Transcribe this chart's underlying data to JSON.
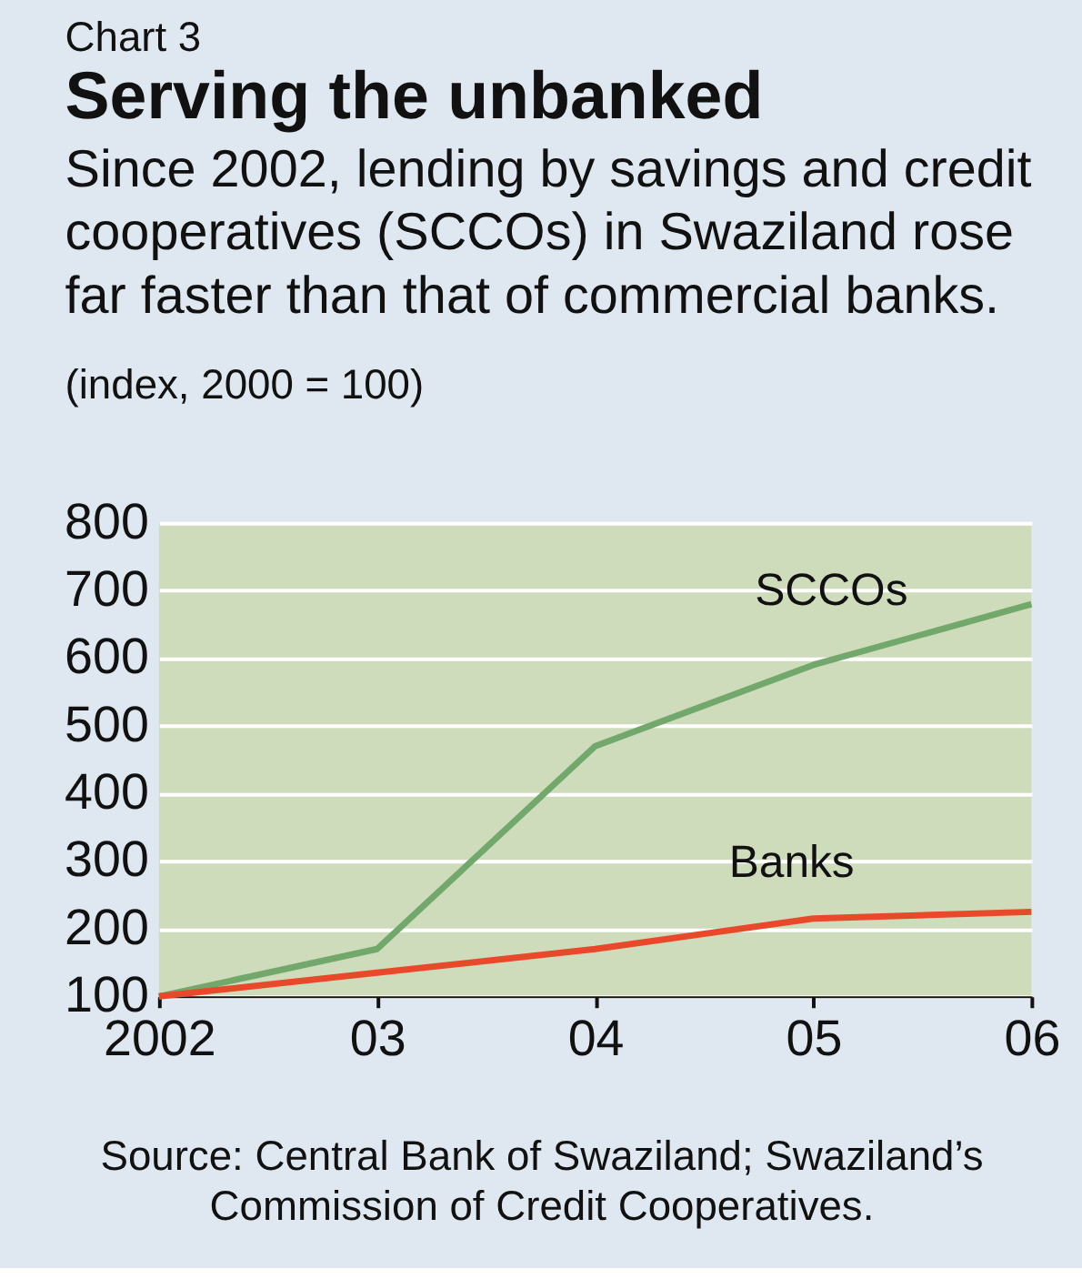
{
  "chart_data": {
    "type": "line",
    "title": "Serving the unbanked",
    "subtitle": "Since 2002, lending by savings and credit cooperatives (SCCOs) in Swaziland rose far faster than that of commercial banks.",
    "ylabel": "(index, 2000 = 100)",
    "annotations": [
      "Chart 3",
      "Source: Central Bank of Swaziland; Swaziland’s Commission of Credit Cooperatives."
    ],
    "x": [
      2002,
      2003,
      2004,
      2005,
      2006
    ],
    "series": [
      {
        "name": "SCCOs",
        "color": "#72a86c",
        "values": [
          100,
          170,
          470,
          590,
          680
        ]
      },
      {
        "name": "Banks",
        "color": "#e8492b",
        "values": [
          100,
          135,
          170,
          215,
          225
        ]
      }
    ],
    "xlim": [
      2002,
      2006
    ],
    "xticks": [
      2002,
      {
        "value": 2003,
        "label": "03"
      },
      {
        "value": 2004,
        "label": "04"
      },
      {
        "value": 2005,
        "label": "05"
      },
      {
        "value": 2006,
        "label": "06"
      }
    ],
    "ylim": [
      100,
      800
    ],
    "yticks": [
      100,
      200,
      300,
      400,
      500,
      600,
      700,
      800
    ],
    "grid": "y",
    "legend": false,
    "marker": "none",
    "line_style": "solid"
  }
}
